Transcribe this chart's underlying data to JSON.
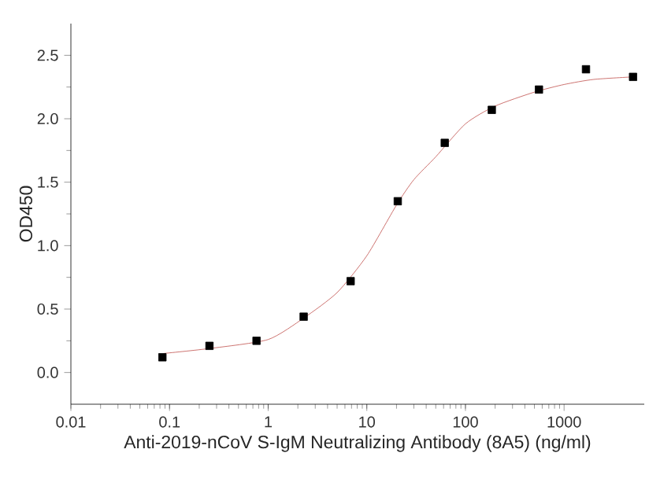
{
  "chart_data": {
    "type": "scatter",
    "xlabel": "Anti-2019-nCoV S-IgM Neutralizing Antibody (8A5) (ng/ml)",
    "ylabel": "OD450",
    "log": "x",
    "xlim": [
      0.01,
      6500
    ],
    "xticks": [
      0.01,
      0.1,
      1,
      10,
      100,
      1000
    ],
    "ylim": [
      -0.25,
      2.75
    ],
    "yticks": [
      {
        "value": 0,
        "label": "0.0"
      },
      0.5,
      {
        "value": 1,
        "label": "1.0"
      },
      1.5,
      {
        "value": 2,
        "label": "2.0"
      },
      2.5
    ],
    "grid": false,
    "series": [
      {
        "type": "line",
        "color": "#c0504d",
        "marker": "none",
        "line_style": "solid",
        "x": [
          0.087,
          0.26,
          1,
          2.3,
          5,
          10,
          20,
          30,
          50,
          100,
          200,
          500,
          1000,
          2000,
          5000
        ],
        "values": [
          0.15,
          0.19,
          0.26,
          0.43,
          0.63,
          0.92,
          1.32,
          1.52,
          1.7,
          1.96,
          2.1,
          2.21,
          2.27,
          2.31,
          2.33
        ]
      },
      {
        "color": "#000000",
        "marker": "square",
        "x": [
          0.0847,
          0.254,
          0.762,
          2.29,
          6.86,
          20.6,
          61.7,
          185,
          556,
          1667,
          5000
        ],
        "values": [
          0.12,
          0.21,
          0.25,
          0.44,
          0.72,
          1.35,
          1.81,
          2.07,
          2.23,
          2.39,
          2.33
        ]
      }
    ]
  }
}
